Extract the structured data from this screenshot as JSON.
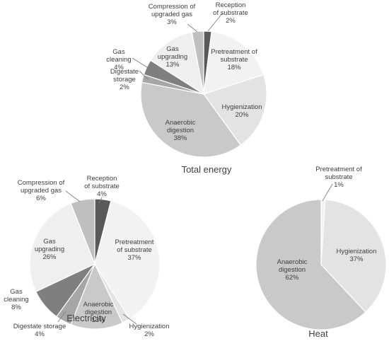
{
  "chart_data": [
    {
      "type": "pie",
      "title": "Total energy",
      "slices": [
        {
          "label": [
            "Reception",
            "of substrate"
          ],
          "value": 2,
          "value_label": "2%",
          "color": "#595959"
        },
        {
          "label": [
            "Pretreatment of",
            "substrate"
          ],
          "value": 18,
          "value_label": "18%",
          "color": "#f2f2f2"
        },
        {
          "label": [
            "Hygienization"
          ],
          "value": 20,
          "value_label": "20%",
          "color": "#e3e3e3"
        },
        {
          "label": [
            "Anaerobic",
            "digestion"
          ],
          "value": 38,
          "value_label": "38%",
          "color": "#c9c9c9"
        },
        {
          "label": [
            "Digestate",
            "storage"
          ],
          "value": 2,
          "value_label": "2%",
          "color": "#a6a6a6"
        },
        {
          "label": [
            "Gas",
            "cleaning"
          ],
          "value": 4,
          "value_label": "4%",
          "color": "#7f7f7f"
        },
        {
          "label": [
            "Gas",
            "upgrading"
          ],
          "value": 13,
          "value_label": "13%",
          "color": "#efefef"
        },
        {
          "label": [
            "Compression of",
            "upgraded gas"
          ],
          "value": 3,
          "value_label": "3%",
          "color": "#bfbfbf"
        }
      ]
    },
    {
      "type": "pie",
      "title": "Electricity",
      "slices": [
        {
          "label": [
            "Reception",
            "of substrate"
          ],
          "value": 4,
          "value_label": "4%",
          "color": "#595959"
        },
        {
          "label": [
            "Pretreatment",
            "of substrate"
          ],
          "value": 37,
          "value_label": "37%",
          "color": "#f2f2f2"
        },
        {
          "label": [
            "Hygienization"
          ],
          "value": 2,
          "value_label": "2%",
          "color": "#e3e3e3"
        },
        {
          "label": [
            "Anaerobic",
            "digestion"
          ],
          "value": 13,
          "value_label": "13%",
          "color": "#c9c9c9"
        },
        {
          "label": [
            "Digestate storage"
          ],
          "value": 4,
          "value_label": "4%",
          "color": "#a6a6a6"
        },
        {
          "label": [
            "Gas",
            "cleaning"
          ],
          "value": 8,
          "value_label": "8%",
          "color": "#7f7f7f"
        },
        {
          "label": [
            "Gas",
            "upgrading"
          ],
          "value": 26,
          "value_label": "26%",
          "color": "#efefef"
        },
        {
          "label": [
            "Compression of",
            "upgraded gas"
          ],
          "value": 6,
          "value_label": "6%",
          "color": "#bfbfbf"
        }
      ]
    },
    {
      "type": "pie",
      "title": "Heat",
      "slices": [
        {
          "label": [
            "Pretreatment of",
            "substrate"
          ],
          "value": 1,
          "value_label": "1%",
          "color": "#f2f2f2"
        },
        {
          "label": [
            "Hygienization"
          ],
          "value": 37,
          "value_label": "37%",
          "color": "#e3e3e3"
        },
        {
          "label": [
            "Anaerobic",
            "digestion"
          ],
          "value": 62,
          "value_label": "62%",
          "color": "#c9c9c9"
        }
      ]
    }
  ]
}
